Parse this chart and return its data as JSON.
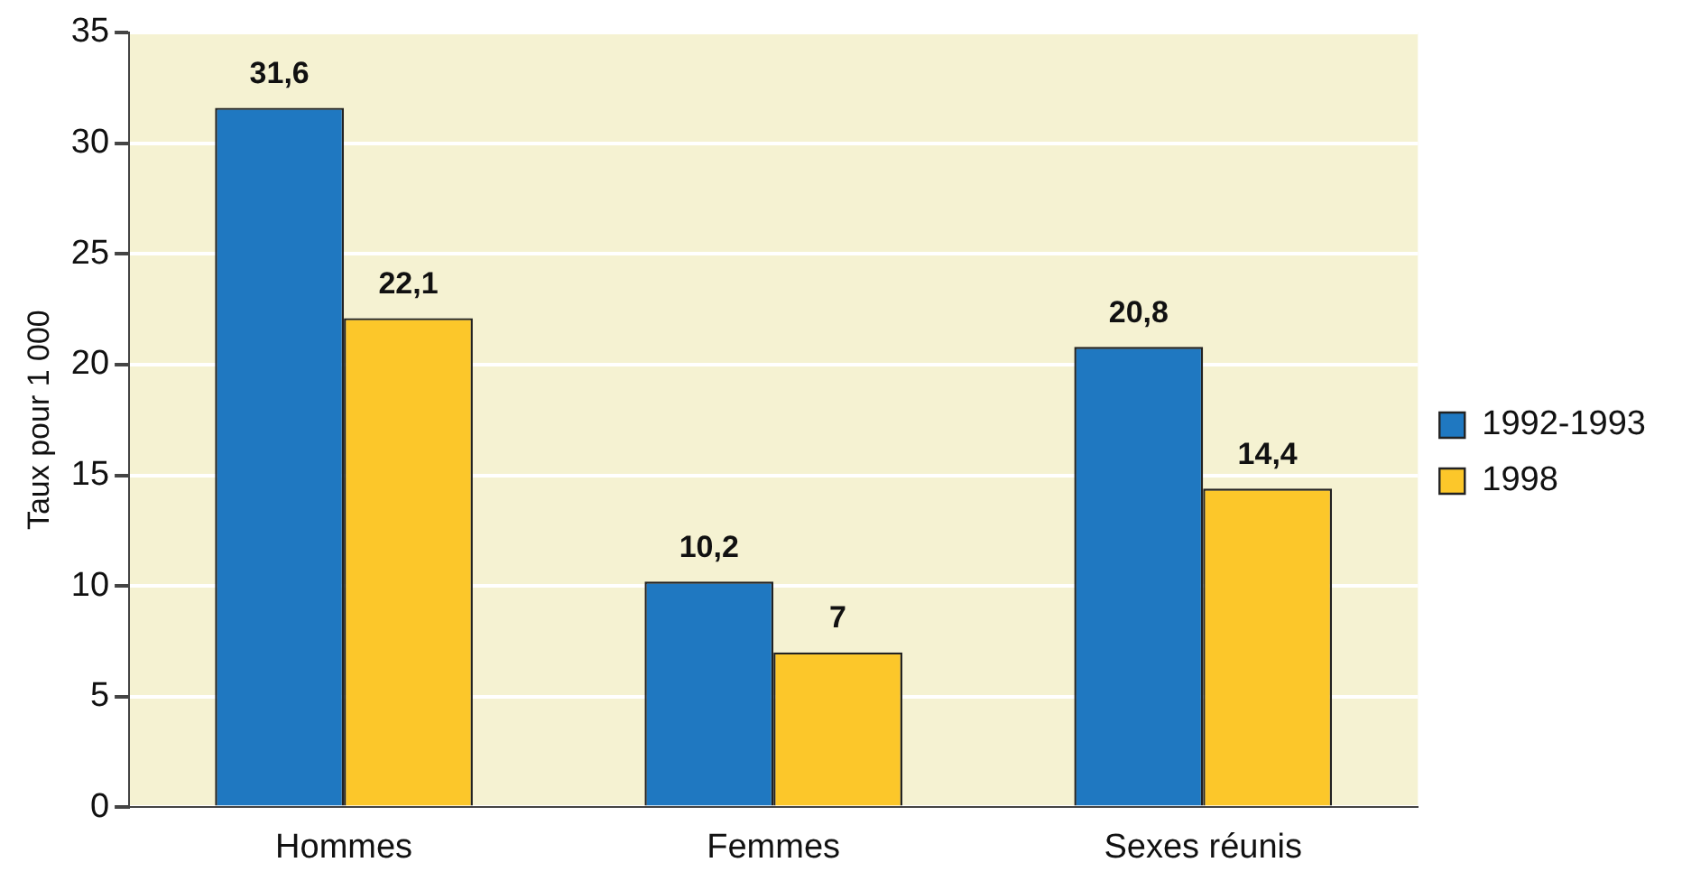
{
  "chart_data": {
    "type": "bar",
    "ylabel": "Taux pour 1 000",
    "categories": [
      "Hommes",
      "Femmes",
      "Sexes réunis"
    ],
    "series": [
      {
        "name": "1992-1993",
        "color": "#1f78c1",
        "values": [
          31.6,
          10.2,
          20.8
        ],
        "value_labels": [
          "31,6",
          "10,2",
          "20,8"
        ]
      },
      {
        "name": "1998",
        "color": "#fcc72a",
        "values": [
          22.1,
          7,
          14.4
        ],
        "value_labels": [
          "22,1",
          "7",
          "14,4"
        ]
      }
    ],
    "ylim": [
      0,
      35
    ],
    "yticks": [
      0,
      5,
      10,
      15,
      20,
      25,
      30,
      35
    ],
    "grid": "y",
    "legend": "right"
  }
}
